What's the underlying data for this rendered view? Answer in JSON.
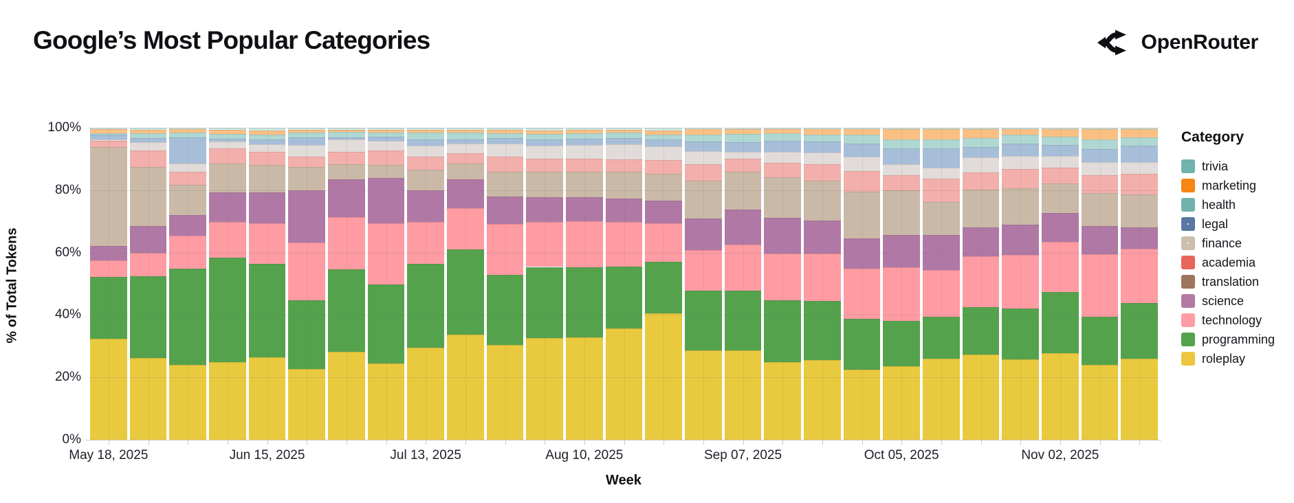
{
  "page": {
    "title": "Google’s Most Popular Categories",
    "brand": "OpenRouter"
  },
  "axes": {
    "y_title": "% of Total Tokens",
    "x_title": "Week",
    "y_tick_labels": [
      "0%",
      "20%",
      "40%",
      "60%",
      "80%",
      "100%"
    ],
    "x_tick_labels": [
      "May 18, 2025",
      "Jun 15, 2025",
      "Jul 13, 2025",
      "Aug 10, 2025",
      "Sep 07, 2025",
      "Oct 05, 2025",
      "Nov 02, 2025"
    ],
    "x_tick_label_indices": [
      0,
      4,
      8,
      12,
      16,
      20,
      24
    ]
  },
  "legend": {
    "title": "Category"
  },
  "chart_data": {
    "type": "bar",
    "stacked": true,
    "normalized": "percent",
    "title": "Google’s Most Popular Categories",
    "xlabel": "Week",
    "ylabel": "% of Total Tokens",
    "ylim": [
      0,
      100
    ],
    "grid": true,
    "legend_position": "right",
    "legend_title": "Category",
    "x": [
      "May 18, 2025",
      "May 25, 2025",
      "Jun 01, 2025",
      "Jun 08, 2025",
      "Jun 15, 2025",
      "Jun 22, 2025",
      "Jun 29, 2025",
      "Jul 06, 2025",
      "Jul 13, 2025",
      "Jul 20, 2025",
      "Jul 27, 2025",
      "Aug 03, 2025",
      "Aug 10, 2025",
      "Aug 17, 2025",
      "Aug 24, 2025",
      "Aug 31, 2025",
      "Sep 07, 2025",
      "Sep 14, 2025",
      "Sep 21, 2025",
      "Sep 28, 2025",
      "Oct 05, 2025",
      "Oct 12, 2025",
      "Oct 19, 2025",
      "Oct 26, 2025",
      "Nov 02, 2025",
      "Nov 09, 2025",
      "Nov 16, 2025"
    ],
    "stack_order_note": "series listed in legend order top-to-bottom; stacked bottom-up in reverse (roleplay at bottom, trivia at top)",
    "series": [
      {
        "name": "trivia",
        "legend_color": "#6fb3ac",
        "bar_color": "#cfe9e5",
        "pattern": "none",
        "values": [
          0.5,
          0.7,
          0.5,
          0.7,
          0.8,
          0.6,
          0.6,
          0.6,
          0.6,
          0.6,
          0.7,
          0.8,
          0.7,
          0.7,
          0.8,
          0.5,
          0.4,
          0.4,
          0.4,
          0.4,
          0.4,
          0.4,
          0.4,
          0.4,
          0.4,
          0.5,
          0.5
        ]
      },
      {
        "name": "marketing",
        "legend_color": "#f58514",
        "bar_color": "#fac083",
        "pattern": "none",
        "values": [
          1.2,
          1.1,
          1.0,
          1.2,
          1.4,
          0.9,
          0.8,
          0.9,
          0.9,
          0.9,
          1.1,
          1.1,
          1.1,
          0.9,
          1.3,
          1.6,
          1.6,
          1.4,
          1.7,
          1.8,
          3.3,
          3.4,
          2.8,
          1.8,
          2.5,
          3.3,
          2.6
        ]
      },
      {
        "name": "health",
        "legend_color": "#6fb3ac",
        "bar_color": "#afd8d2",
        "pattern": "none",
        "values": [
          0.4,
          1.5,
          1.6,
          1.5,
          1.6,
          1.6,
          1.7,
          1.4,
          2.2,
          2.2,
          1.4,
          1.8,
          1.7,
          1.6,
          1.7,
          2.4,
          2.6,
          2.4,
          2.3,
          2.9,
          2.9,
          2.9,
          3.0,
          2.8,
          2.6,
          3.0,
          2.6
        ]
      },
      {
        "name": "legal",
        "legend_color": "#5878a3",
        "bar_color": "#a7bed9",
        "pattern": "dots",
        "values": [
          1.7,
          1.4,
          8.3,
          1.0,
          1.5,
          2.4,
          0.7,
          1.3,
          2.0,
          1.4,
          1.9,
          2.0,
          2.0,
          2.1,
          2.2,
          2.9,
          3.0,
          3.6,
          3.5,
          4.2,
          5.0,
          6.0,
          3.3,
          4.0,
          3.6,
          4.2,
          5.3
        ]
      },
      {
        "name": "finance",
        "legend_color": "#cbbfab",
        "bar_color": "#e1dbd9",
        "pattern": "dots",
        "values": [
          0.4,
          2.5,
          2.6,
          2.2,
          2.4,
          3.7,
          4.0,
          3.1,
          3.6,
          3.1,
          4.2,
          4.1,
          4.3,
          4.8,
          4.4,
          4.2,
          2.2,
          3.5,
          3.7,
          4.5,
          3.5,
          3.7,
          4.8,
          4.1,
          3.6,
          4.1,
          3.8
        ]
      },
      {
        "name": "academia",
        "legend_color": "#e8655b",
        "bar_color": "#f3afab",
        "pattern": "none",
        "values": [
          1.9,
          5.3,
          4.4,
          4.8,
          4.2,
          3.4,
          3.9,
          4.6,
          4.1,
          3.2,
          4.7,
          4.4,
          4.3,
          4.0,
          4.3,
          5.4,
          4.3,
          4.6,
          5.3,
          6.6,
          5.0,
          7.3,
          5.5,
          6.2,
          5.1,
          5.8,
          6.6
        ]
      },
      {
        "name": "translation",
        "legend_color": "#9d7660",
        "bar_color": "#cab9a7",
        "pattern": "none",
        "values": [
          31.7,
          19.1,
          9.5,
          9.2,
          8.7,
          7.4,
          4.9,
          4.2,
          6.6,
          5.2,
          8.0,
          8.1,
          8.1,
          8.6,
          8.6,
          12.1,
          12.0,
          12.9,
          12.7,
          15.0,
          14.2,
          10.7,
          12.3,
          11.6,
          9.6,
          10.5,
          10.5
        ]
      },
      {
        "name": "science",
        "legend_color": "#b279a2",
        "bar_color": "#b078a4",
        "pattern": "none",
        "values": [
          4.6,
          8.5,
          6.8,
          9.5,
          10.0,
          16.7,
          12.0,
          14.5,
          10.2,
          9.2,
          8.8,
          7.8,
          7.7,
          7.5,
          7.3,
          10.1,
          11.3,
          11.4,
          10.5,
          9.7,
          10.3,
          11.2,
          9.2,
          9.7,
          9.3,
          9.0,
          6.8
        ]
      },
      {
        "name": "technology",
        "legend_color": "#ff9da6",
        "bar_color": "#ff9ba3",
        "pattern": "none",
        "values": [
          5.3,
          7.5,
          10.6,
          11.4,
          12.9,
          18.5,
          16.7,
          19.6,
          13.5,
          13.1,
          16.3,
          14.5,
          14.9,
          14.2,
          12.3,
          12.9,
          14.7,
          15.0,
          15.2,
          15.9,
          17.2,
          15.0,
          16.2,
          17.1,
          16.1,
          19.8,
          17.4
        ]
      },
      {
        "name": "programming",
        "legend_color": "#54a24b",
        "bar_color": "#55a24d",
        "pattern": "none",
        "values": [
          20.0,
          26.3,
          30.8,
          33.2,
          30.1,
          22.0,
          26.6,
          25.4,
          26.7,
          27.3,
          22.4,
          22.9,
          22.3,
          20.0,
          16.6,
          19.3,
          19.3,
          20.0,
          18.9,
          16.4,
          14.5,
          13.4,
          15.4,
          16.3,
          19.5,
          15.3,
          17.8
        ]
      },
      {
        "name": "roleplay",
        "legend_color": "#ecc63f",
        "bar_color": "#e9c93e",
        "pattern": "none",
        "values": [
          32.3,
          26.2,
          24.0,
          24.8,
          26.4,
          22.8,
          28.1,
          24.4,
          29.6,
          33.8,
          30.5,
          32.5,
          32.9,
          35.6,
          40.5,
          28.6,
          28.6,
          24.8,
          25.5,
          22.4,
          23.5,
          26.1,
          27.3,
          25.7,
          27.9,
          24.0,
          26.1
        ]
      }
    ]
  }
}
